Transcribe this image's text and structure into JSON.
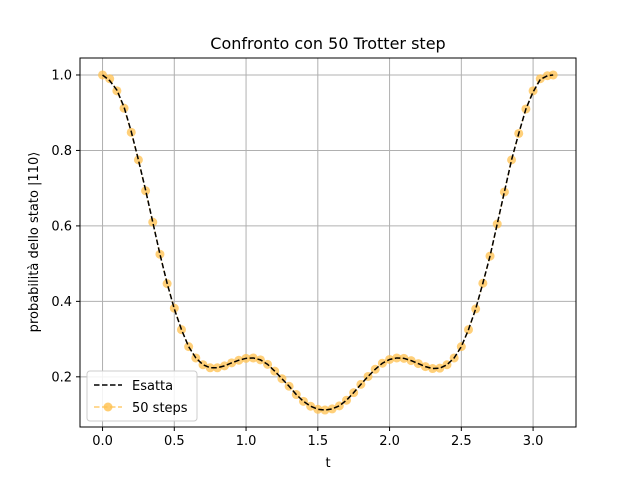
{
  "chart_data": {
    "type": "line",
    "title": "Confronto con 50 Trotter step",
    "xlabel": "t",
    "ylabel": "probabilità dello stato |110⟩",
    "xlim": [
      -0.157,
      3.299
    ],
    "ylim": [
      0.067,
      1.045
    ],
    "grid": true,
    "legend_position": "lower-left",
    "xticks": [
      0.0,
      0.5,
      1.0,
      1.5,
      2.0,
      2.5,
      3.0
    ],
    "xtick_labels": [
      "0.0",
      "0.5",
      "1.0",
      "1.5",
      "2.0",
      "2.5",
      "3.0"
    ],
    "yticks": [
      0.2,
      0.4,
      0.6,
      0.8,
      1.0
    ],
    "ytick_labels": [
      "0.2",
      "0.4",
      "0.6",
      "0.8",
      "1.0"
    ],
    "series": [
      {
        "name": "Esatta",
        "style": "dashed",
        "color": "#000000",
        "x": [
          0.0,
          0.05,
          0.1,
          0.15,
          0.2,
          0.25,
          0.3,
          0.35,
          0.4,
          0.45,
          0.5,
          0.55,
          0.6,
          0.65,
          0.7,
          0.75,
          0.8,
          0.85,
          0.9,
          0.95,
          1.0,
          1.05,
          1.1,
          1.15,
          1.2,
          1.25,
          1.3,
          1.35,
          1.4,
          1.45,
          1.5,
          1.55,
          1.6,
          1.65,
          1.7,
          1.75,
          1.8,
          1.85,
          1.9,
          1.95,
          2.0,
          2.05,
          2.1,
          2.15,
          2.2,
          2.25,
          2.3,
          2.35,
          2.4,
          2.45,
          2.5,
          2.55,
          2.6,
          2.65,
          2.7,
          2.75,
          2.8,
          2.85,
          2.9,
          2.95,
          3.0,
          3.05,
          3.1,
          3.14
        ],
        "y": [
          1.0,
          0.985,
          0.96,
          0.915,
          0.85,
          0.775,
          0.695,
          0.61,
          0.525,
          0.448,
          0.38,
          0.325,
          0.28,
          0.25,
          0.232,
          0.224,
          0.224,
          0.229,
          0.237,
          0.244,
          0.249,
          0.25,
          0.245,
          0.233,
          0.215,
          0.195,
          0.175,
          0.153,
          0.135,
          0.122,
          0.114,
          0.112,
          0.115,
          0.123,
          0.138,
          0.158,
          0.18,
          0.201,
          0.22,
          0.236,
          0.246,
          0.25,
          0.249,
          0.243,
          0.235,
          0.227,
          0.222,
          0.223,
          0.232,
          0.25,
          0.28,
          0.325,
          0.38,
          0.448,
          0.52,
          0.605,
          0.69,
          0.775,
          0.845,
          0.91,
          0.955,
          0.988,
          0.998,
          1.0
        ]
      },
      {
        "name": "50 steps",
        "style": "dashed-markers",
        "color": "#ffc04d",
        "x": [
          0.0,
          0.05,
          0.1,
          0.15,
          0.2,
          0.25,
          0.3,
          0.35,
          0.4,
          0.45,
          0.5,
          0.55,
          0.6,
          0.65,
          0.7,
          0.75,
          0.8,
          0.85,
          0.9,
          0.95,
          1.0,
          1.05,
          1.1,
          1.15,
          1.2,
          1.25,
          1.3,
          1.35,
          1.4,
          1.45,
          1.5,
          1.55,
          1.6,
          1.65,
          1.7,
          1.75,
          1.8,
          1.85,
          1.9,
          1.95,
          2.0,
          2.05,
          2.1,
          2.15,
          2.2,
          2.25,
          2.3,
          2.35,
          2.4,
          2.45,
          2.5,
          2.55,
          2.6,
          2.65,
          2.7,
          2.75,
          2.8,
          2.85,
          2.9,
          2.95,
          3.0,
          3.05,
          3.1,
          3.14
        ],
        "y": [
          1.0,
          0.99,
          0.958,
          0.912,
          0.848,
          0.775,
          0.693,
          0.61,
          0.525,
          0.447,
          0.382,
          0.325,
          0.28,
          0.25,
          0.232,
          0.224,
          0.224,
          0.229,
          0.237,
          0.244,
          0.249,
          0.25,
          0.245,
          0.233,
          0.215,
          0.195,
          0.175,
          0.153,
          0.135,
          0.122,
          0.114,
          0.112,
          0.115,
          0.123,
          0.138,
          0.158,
          0.18,
          0.201,
          0.22,
          0.236,
          0.246,
          0.25,
          0.249,
          0.243,
          0.235,
          0.227,
          0.222,
          0.223,
          0.232,
          0.25,
          0.28,
          0.325,
          0.38,
          0.448,
          0.52,
          0.605,
          0.69,
          0.775,
          0.845,
          0.91,
          0.958,
          0.99,
          0.998,
          1.0
        ]
      }
    ]
  }
}
